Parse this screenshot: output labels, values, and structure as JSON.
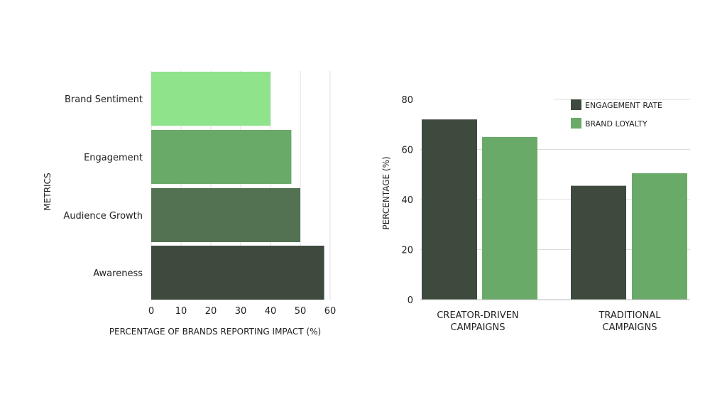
{
  "chart_data": [
    {
      "type": "bar",
      "orientation": "horizontal",
      "categories": [
        "Brand Sentiment",
        "Engagement",
        "Audience Growth",
        "Awareness"
      ],
      "values": [
        40,
        47,
        50,
        58
      ],
      "colors": [
        "#8fe38a",
        "#6aaa68",
        "#527252",
        "#3e4a3e"
      ],
      "xlabel": "PERCENTAGE OF BRANDS REPORTING IMPACT (%)",
      "ylabel": "METRICS",
      "xlim": [
        0,
        60
      ],
      "xticks": [
        "0",
        "10",
        "20",
        "30",
        "40",
        "50",
        "60"
      ],
      "grid": true
    },
    {
      "type": "bar",
      "orientation": "vertical",
      "categories": [
        "CREATOR-DRIVEN\nCAMPAIGNS",
        "TRADITIONAL\nCAMPAIGNS"
      ],
      "series": [
        {
          "name": "ENGAGEMENT RATE",
          "values": [
            72,
            45.5
          ],
          "color": "#3e4a3e"
        },
        {
          "name": "BRAND LOYALTY",
          "values": [
            65,
            50.5
          ],
          "color": "#6aaa68"
        }
      ],
      "xlabel": "",
      "ylabel": "PERCENTAGE (%)",
      "ylim": [
        0,
        80
      ],
      "yticks": [
        "0",
        "20",
        "40",
        "60",
        "80"
      ],
      "legend": "top-right",
      "grid": true
    }
  ]
}
